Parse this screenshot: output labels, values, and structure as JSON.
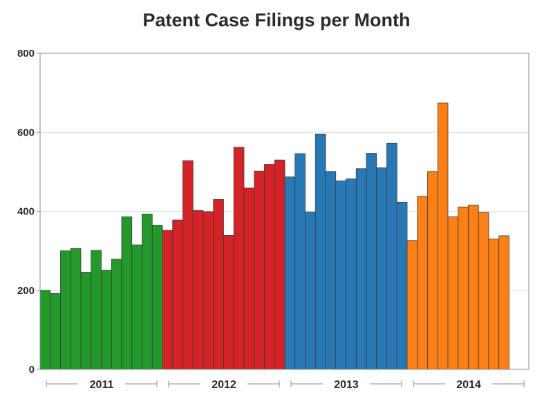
{
  "chart_data": {
    "type": "bar",
    "title": "Patent Case Filings per Month",
    "xlabel": "",
    "ylabel": "",
    "ylim": [
      0,
      800
    ],
    "yticks": [
      0,
      200,
      400,
      600,
      800
    ],
    "grid": true,
    "groups": [
      {
        "label": "2011",
        "color": "#22992a",
        "values": [
          200,
          192,
          300,
          306,
          246,
          301,
          251,
          279,
          386,
          315,
          393,
          365
        ]
      },
      {
        "label": "2012",
        "color": "#d42326",
        "values": [
          352,
          378,
          528,
          402,
          399,
          430,
          339,
          562,
          459,
          502,
          519,
          530
        ]
      },
      {
        "label": "2013",
        "color": "#2878b6",
        "values": [
          487,
          546,
          398,
          595,
          501,
          477,
          482,
          508,
          547,
          510,
          572,
          423
        ]
      },
      {
        "label": "2014",
        "color": "#fd7f17",
        "values": [
          326,
          438,
          501,
          674,
          386,
          411,
          416,
          397,
          330,
          338
        ]
      }
    ]
  }
}
